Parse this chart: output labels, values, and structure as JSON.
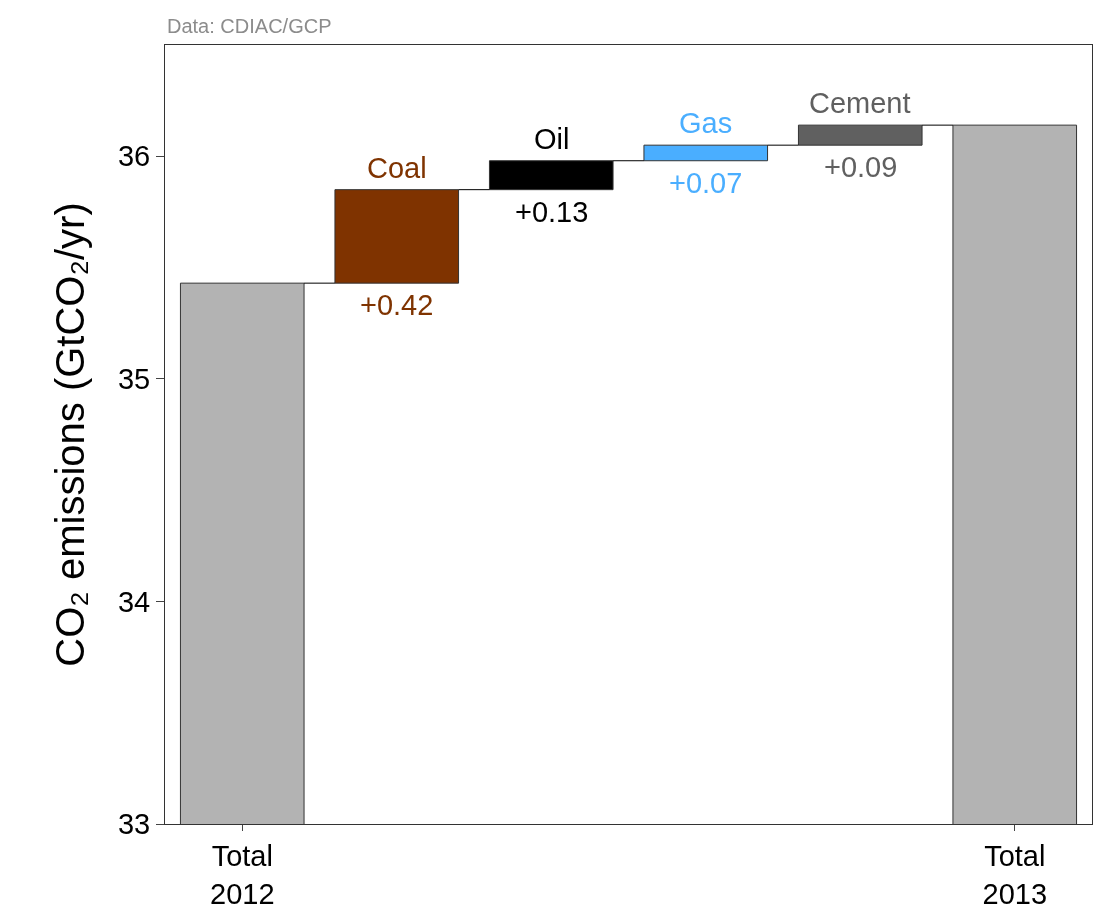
{
  "chart_data": {
    "type": "bar",
    "ylabel": "CO₂ emissions (GtCO₂/yr)",
    "categories": [
      "Total 2012",
      "Coal",
      "Oil",
      "Gas",
      "Cement",
      "Total 2013"
    ],
    "values": [
      35.43,
      0.42,
      0.13,
      0.07,
      0.09,
      36.14
    ],
    "base": [
      null,
      35.43,
      35.85,
      35.98,
      36.05,
      null
    ],
    "colors": [
      "#b3b3b3",
      "#7f3300",
      "#000000",
      "#4aaeff",
      "#606060",
      "#b3b3b3"
    ],
    "value_labels": [
      null,
      "+0.42",
      "+0.13",
      "+0.07",
      "+0.09",
      null
    ],
    "ylim": [
      33,
      36.5
    ],
    "yticks": [
      33,
      34,
      35,
      36
    ],
    "grid": false,
    "annotations": [
      "Data: CDIAC/GCP"
    ]
  }
}
